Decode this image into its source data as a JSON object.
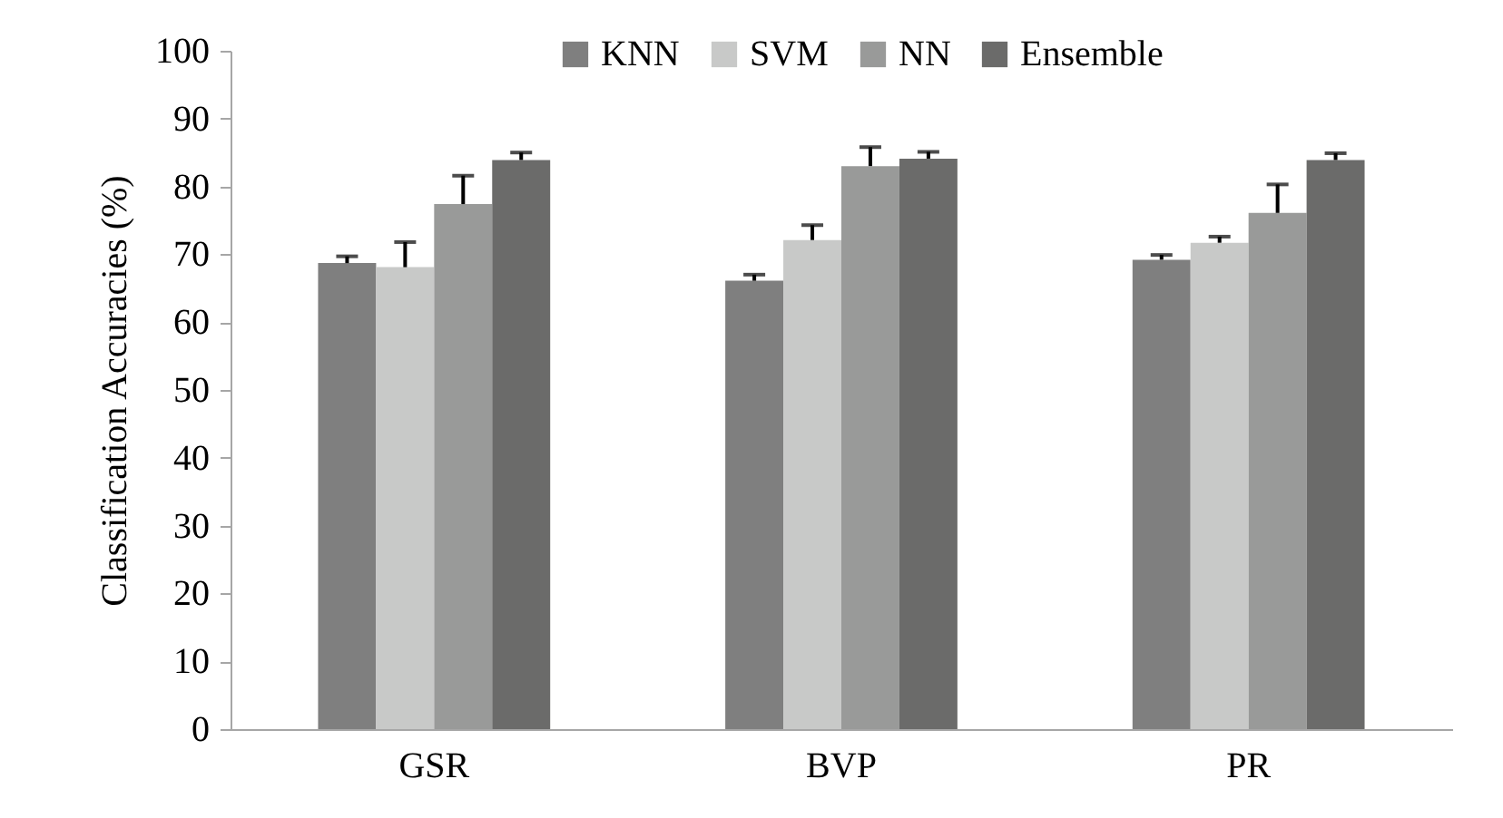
{
  "chart_data": {
    "type": "bar",
    "ylabel": "Classification Accuracies (%)",
    "categories": [
      "GSR",
      "BVP",
      "PR"
    ],
    "series": [
      {
        "name": "KNN",
        "color": "#7f7f7f",
        "values": [
          68.7,
          66.1,
          69.2
        ],
        "errors": [
          [
            68.7,
            69.7
          ],
          [
            66.1,
            67.0
          ],
          [
            69.2,
            69.9
          ]
        ]
      },
      {
        "name": "SVM",
        "color": "#c8c9c8",
        "values": [
          68.1,
          72.1,
          71.7
        ],
        "errors": [
          [
            68.1,
            71.8
          ],
          [
            72.1,
            74.3
          ],
          [
            71.7,
            72.6
          ]
        ]
      },
      {
        "name": "NN",
        "color": "#999a99",
        "values": [
          77.4,
          83.0,
          76.1
        ],
        "errors": [
          [
            77.4,
            81.6
          ],
          [
            83.0,
            85.8
          ],
          [
            76.1,
            80.3
          ]
        ]
      },
      {
        "name": "Ensemble",
        "color": "#6b6b6a",
        "values": [
          83.9,
          84.1,
          83.9
        ],
        "errors": [
          [
            83.9,
            85.0
          ],
          [
            84.1,
            85.1
          ],
          [
            83.9,
            84.9
          ]
        ]
      }
    ],
    "ylim": [
      0,
      100
    ],
    "yticks": [
      0,
      10,
      20,
      30,
      40,
      50,
      60,
      70,
      80,
      90,
      100
    ],
    "grid": false,
    "legend": "top"
  }
}
